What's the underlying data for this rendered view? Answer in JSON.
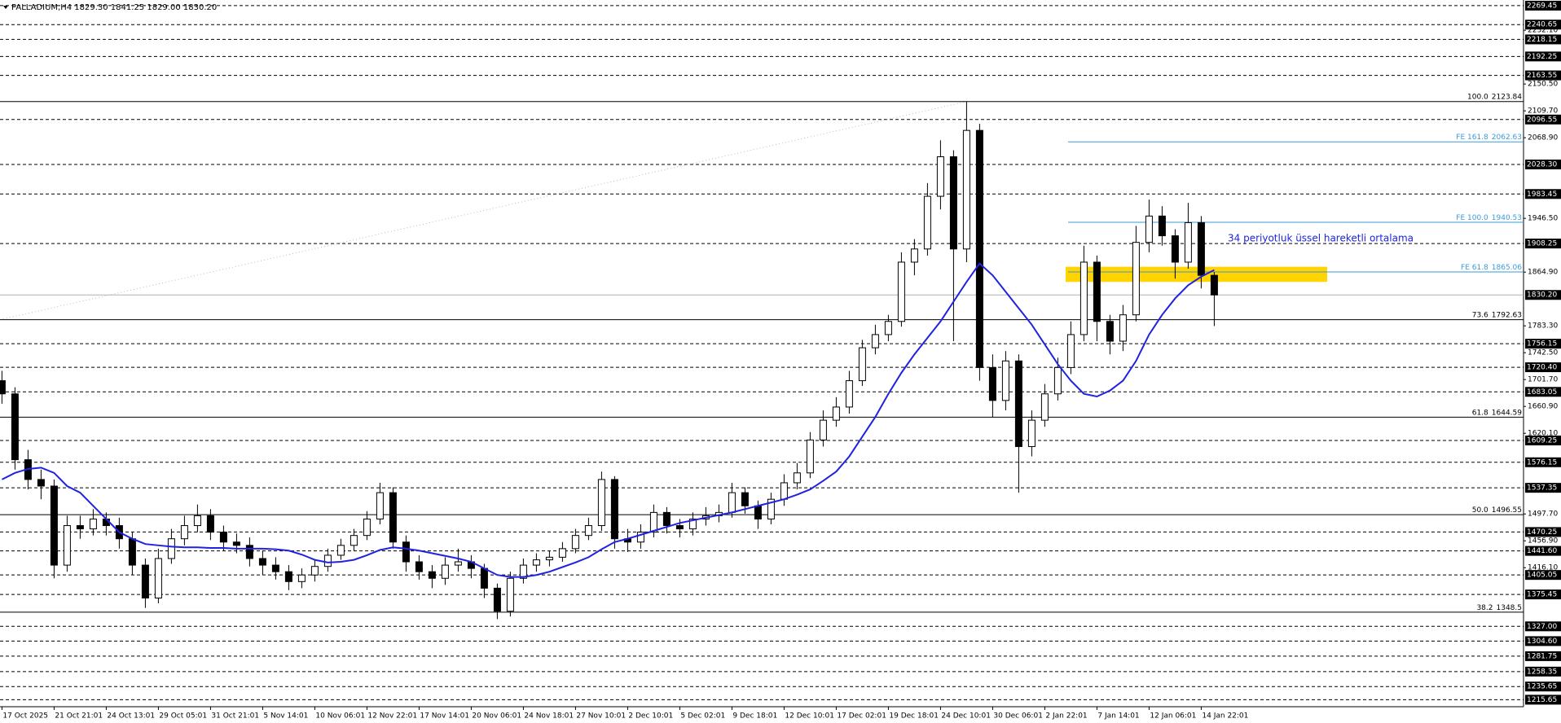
{
  "chart_data": {
    "type": "candlestick",
    "title": "PALLADIUM,H4 1829.30 1841.25 1829.00 1830.20",
    "x": [
      "17 Oct 2025",
      null,
      null,
      null,
      "21 Oct 21:01",
      null,
      null,
      null,
      "24 Oct 13:01",
      null,
      null,
      null,
      "29 Oct 05:01",
      null,
      null,
      null,
      "31 Oct 21:01",
      null,
      null,
      null,
      "5 Nov 14:01",
      null,
      null,
      null,
      "10 Nov 06:01",
      null,
      null,
      null,
      "12 Nov 22:01",
      null,
      null,
      null,
      "17 Nov 14:01",
      null,
      null,
      null,
      "20 Nov 06:01",
      null,
      null,
      null,
      "24 Nov 18:01",
      null,
      null,
      null,
      "27 Nov 10:01",
      null,
      null,
      null,
      "2 Dec 10:01",
      null,
      null,
      null,
      "5 Dec 02:01",
      null,
      null,
      null,
      "9 Dec 18:01",
      null,
      null,
      null,
      "12 Dec 10:01",
      null,
      null,
      null,
      "17 Dec 02:01",
      null,
      null,
      null,
      "19 Dec 18:01",
      null,
      null,
      null,
      "24 Dec 10:01",
      null,
      null,
      null,
      "30 Dec 06:01",
      null,
      null,
      null,
      "2 Jan 22:01",
      null,
      null,
      null,
      "7 Jan 14:01",
      null,
      null,
      null,
      "12 Jan 06:01",
      null,
      null,
      null,
      "14 Jan 22:01",
      null
    ],
    "open": [
      1700,
      1680,
      1580,
      1550,
      1540,
      1420,
      1480,
      1475,
      1490,
      1480,
      1460,
      1420,
      1370,
      1430,
      1460,
      1480,
      1495,
      1470,
      1455,
      1450,
      1430,
      1420,
      1410,
      1395,
      1405,
      1418,
      1435,
      1450,
      1465,
      1490,
      1530,
      1455,
      1425,
      1410,
      1400,
      1420,
      1425,
      1415,
      1385,
      1350,
      1400,
      1420,
      1428,
      1432,
      1445,
      1465,
      1480,
      1550,
      1460,
      1455,
      1470,
      1500,
      1480,
      1475,
      1490,
      1495,
      1500,
      1530,
      1510,
      1490,
      1520,
      1545,
      1560,
      1610,
      1640,
      1660,
      1700,
      1750,
      1770,
      1790,
      1880,
      1900,
      1980,
      2040,
      1900,
      2080,
      1720,
      1670,
      1730,
      1600,
      1640,
      1680,
      1720,
      1770,
      1880,
      1790,
      1760,
      1800,
      1910,
      1950,
      1920,
      1880,
      1940,
      1860
    ],
    "high": [
      1715,
      1690,
      1595,
      1565,
      1550,
      1495,
      1495,
      1505,
      1500,
      1492,
      1470,
      1430,
      1445,
      1475,
      1495,
      1512,
      1505,
      1480,
      1468,
      1462,
      1442,
      1432,
      1420,
      1415,
      1428,
      1445,
      1460,
      1475,
      1502,
      1545,
      1538,
      1465,
      1435,
      1420,
      1432,
      1445,
      1435,
      1422,
      1392,
      1410,
      1430,
      1438,
      1442,
      1455,
      1475,
      1492,
      1562,
      1555,
      1475,
      1482,
      1512,
      1508,
      1490,
      1500,
      1508,
      1512,
      1545,
      1538,
      1518,
      1530,
      1558,
      1575,
      1622,
      1655,
      1675,
      1715,
      1762,
      1785,
      1800,
      1895,
      1915,
      2000,
      2065,
      2050,
      2123.84,
      2090,
      1740,
      1745,
      1740,
      1655,
      1695,
      1735,
      1790,
      1905,
      1890,
      1800,
      1815,
      1935,
      1975,
      1965,
      1930,
      1970,
      1950,
      1865
    ],
    "low": [
      1665,
      1565,
      1535,
      1520,
      1400,
      1410,
      1460,
      1465,
      1465,
      1445,
      1405,
      1355,
      1362,
      1422,
      1450,
      1470,
      1458,
      1442,
      1438,
      1418,
      1405,
      1398,
      1382,
      1385,
      1395,
      1410,
      1428,
      1442,
      1458,
      1482,
      1445,
      1410,
      1398,
      1385,
      1390,
      1410,
      1400,
      1370,
      1338,
      1342,
      1392,
      1410,
      1418,
      1425,
      1438,
      1458,
      1472,
      1445,
      1440,
      1445,
      1462,
      1468,
      1462,
      1465,
      1480,
      1485,
      1492,
      1498,
      1475,
      1482,
      1510,
      1535,
      1552,
      1600,
      1630,
      1650,
      1692,
      1740,
      1760,
      1782,
      1860,
      1890,
      1960,
      1760,
      1880,
      1700,
      1645,
      1655,
      1530,
      1585,
      1630,
      1670,
      1710,
      1760,
      1760,
      1740,
      1745,
      1790,
      1895,
      1905,
      1855,
      1870,
      1840,
      1783
    ],
    "close": [
      1680,
      1580,
      1550,
      1540,
      1420,
      1480,
      1475,
      1490,
      1480,
      1460,
      1420,
      1370,
      1430,
      1460,
      1480,
      1495,
      1470,
      1455,
      1450,
      1430,
      1420,
      1410,
      1395,
      1405,
      1418,
      1435,
      1450,
      1465,
      1490,
      1530,
      1455,
      1425,
      1410,
      1400,
      1420,
      1425,
      1415,
      1385,
      1350,
      1400,
      1420,
      1428,
      1432,
      1445,
      1465,
      1480,
      1550,
      1460,
      1455,
      1470,
      1500,
      1480,
      1475,
      1490,
      1495,
      1500,
      1530,
      1510,
      1490,
      1520,
      1545,
      1560,
      1610,
      1640,
      1660,
      1700,
      1750,
      1770,
      1790,
      1880,
      1900,
      1980,
      2040,
      1900,
      2080,
      1720,
      1670,
      1730,
      1600,
      1640,
      1680,
      1720,
      1770,
      1880,
      1790,
      1760,
      1800,
      1910,
      1950,
      1920,
      1880,
      1940,
      1860,
      1830.2
    ],
    "up_color": "#ffffff",
    "down_color": "#000000",
    "wick_color": "#000000",
    "ema": {
      "label": "34 periyotluk üssel hareketli ortalama",
      "color": "#1f22e0",
      "values": [
        1550,
        1560,
        1566,
        1568,
        1560,
        1540,
        1530,
        1510,
        1490,
        1470,
        1460,
        1452,
        1450,
        1448,
        1447,
        1447,
        1446,
        1446,
        1445,
        1445,
        1445,
        1444,
        1442,
        1436,
        1428,
        1424,
        1425,
        1428,
        1435,
        1443,
        1447,
        1445,
        1442,
        1438,
        1434,
        1430,
        1425,
        1415,
        1405,
        1402,
        1402,
        1405,
        1410,
        1417,
        1424,
        1432,
        1444,
        1455,
        1460,
        1466,
        1472,
        1478,
        1484,
        1488,
        1492,
        1496,
        1500,
        1505,
        1510,
        1515,
        1520,
        1527,
        1535,
        1548,
        1562,
        1585,
        1615,
        1645,
        1680,
        1712,
        1740,
        1765,
        1790,
        1820,
        1850,
        1878,
        1860,
        1835,
        1810,
        1785,
        1755,
        1725,
        1700,
        1680,
        1676,
        1685,
        1700,
        1730,
        1770,
        1800,
        1825,
        1845,
        1858,
        1868
      ]
    },
    "ylim": [
      1205,
      2278
    ],
    "levels": [
      2269.45,
      2240.65,
      2218.15,
      2192.25,
      2163.55,
      2096.55,
      {
        "value": 2028.3,
        "label": "2028.30"
      },
      1983.45,
      1908.25,
      1756.15,
      {
        "value": 1720.4,
        "label": "1720.40"
      },
      1683.05,
      1609.25,
      1576.15,
      1537.35,
      1470.25,
      {
        "value": 1441.6,
        "label": "1441.60"
      },
      1405.05,
      1375.45,
      {
        "value": 1327,
        "label": "1327.00"
      },
      {
        "value": 1304.6,
        "label": "1304.60"
      },
      1281.75,
      1258.35,
      1235.65,
      1215.65
    ],
    "yticks": [
      {
        "value": 2232.1,
        "label": "2232.10"
      },
      {
        "value": 2150.5,
        "label": "2150.50"
      },
      {
        "value": 2109.7,
        "label": "2109.70"
      },
      {
        "value": 2068.9,
        "label": "2068.90"
      },
      {
        "value": 1946.5,
        "label": "1946.50"
      },
      {
        "value": 1864.9,
        "label": "1864.90"
      },
      {
        "value": 1783.3,
        "label": "1783.30"
      },
      {
        "value": 1742.5,
        "label": "1742.50"
      },
      {
        "value": 1701.7,
        "label": "1701.70"
      },
      {
        "value": 1660.9,
        "label": "1660.90"
      },
      {
        "value": 1620.1,
        "label": "1620.10"
      },
      {
        "value": 1497.7,
        "label": "1497.70"
      },
      {
        "value": 1456.9,
        "label": "1456.90"
      },
      {
        "value": 1416.1,
        "label": "1416.10"
      }
    ],
    "current_price": {
      "value": 1830.2,
      "label": "1830.20"
    },
    "fibonacci": [
      {
        "label": "100.0",
        "value": 2123.84
      },
      {
        "label": "73.6",
        "value": 1792.63
      },
      {
        "label": "61.8",
        "value": 1644.59
      },
      {
        "label": "50.0",
        "value": 1496.55
      },
      {
        "label": "38.2",
        "value": 1348.5
      }
    ],
    "fibo_expansion": {
      "color": "#3a9ad9",
      "levels": [
        {
          "label": "FE 161.8",
          "value": 2062.63
        },
        {
          "label": "FE 100.0",
          "value": 1940.53
        },
        {
          "label": "FE 61.8",
          "value": 1865.06
        }
      ]
    },
    "zone": {
      "ylim": [
        1850,
        1873
      ],
      "color": "#ffd400"
    }
  }
}
